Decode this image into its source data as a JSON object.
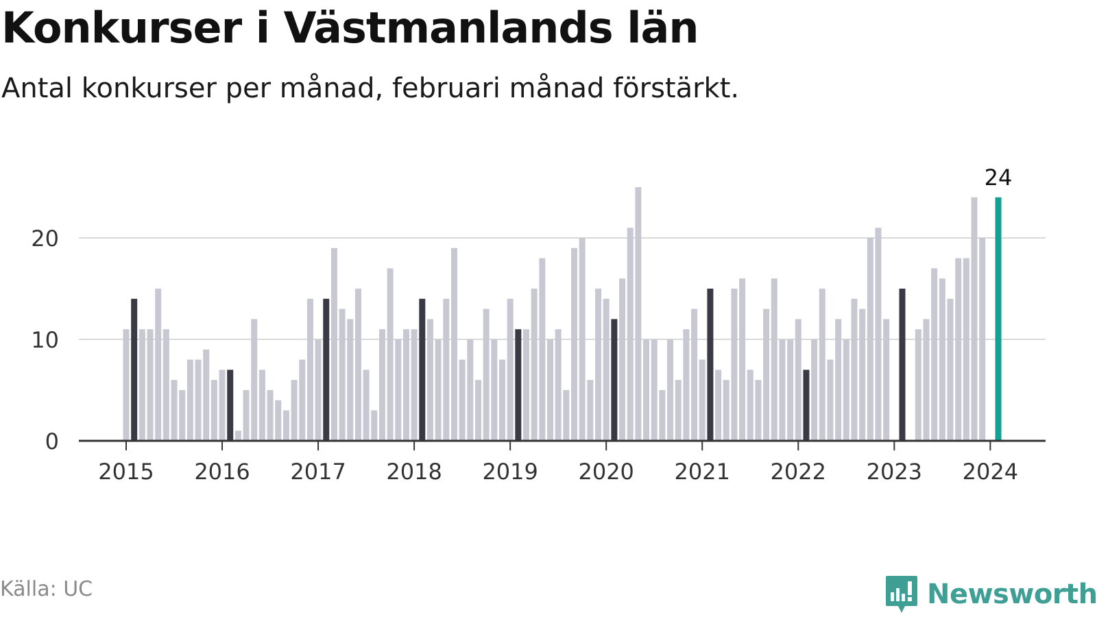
{
  "header": {
    "title": "Konkurser i Västmanlands län",
    "subtitle": "Antal konkurser per månad, februari månad förstärkt."
  },
  "footer": {
    "source": "Källa: UC",
    "brand": "Newsworthy"
  },
  "colors": {
    "bar": "#c8c8d2",
    "february": "#3a3a46",
    "latest": "#13a095",
    "grid": "#d9d9d9",
    "axis": "#333333",
    "brand": "#3f9f95"
  },
  "chart_data": {
    "type": "bar",
    "x_start": "2015-01",
    "x_end": "2024-02",
    "x_ticks": [
      "2015",
      "2016",
      "2017",
      "2018",
      "2019",
      "2020",
      "2021",
      "2022",
      "2023",
      "2024"
    ],
    "y_ticks": [
      "0",
      "10",
      "20"
    ],
    "ylim": [
      0,
      27
    ],
    "grid": true,
    "highlight": "february",
    "series": [
      {
        "values": [
          11,
          14,
          11,
          11,
          15,
          11,
          6,
          5,
          8,
          8,
          9,
          6,
          7,
          7,
          1,
          5,
          12,
          7,
          5,
          4,
          3,
          6,
          8,
          14,
          10,
          14,
          19,
          13,
          12,
          15,
          7,
          3,
          11,
          17,
          10,
          11,
          11,
          14,
          12,
          10,
          14,
          19,
          8,
          10,
          6,
          13,
          10,
          8,
          14,
          11,
          11,
          15,
          18,
          10,
          11,
          5,
          19,
          20,
          6,
          15,
          14,
          12,
          16,
          21,
          25,
          10,
          10,
          5,
          10,
          6,
          11,
          13,
          8,
          15,
          7,
          6,
          15,
          16,
          7,
          6,
          13,
          16,
          10,
          10,
          12,
          7,
          10,
          15,
          8,
          12,
          10,
          14,
          13,
          20,
          21,
          12,
          0,
          15,
          0,
          11,
          12,
          17,
          16,
          14,
          18,
          18,
          24,
          20,
          0,
          24
        ]
      }
    ],
    "latest_label": "24"
  }
}
